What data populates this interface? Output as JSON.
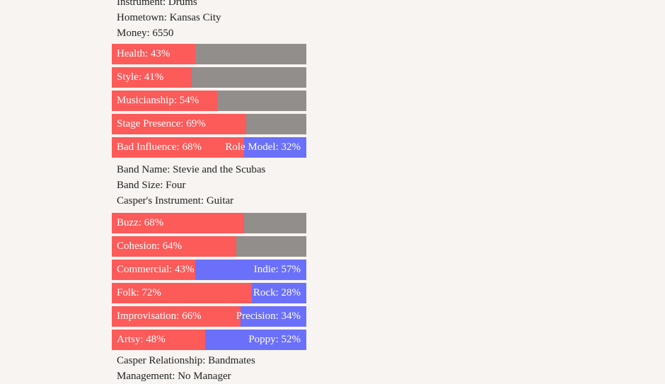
{
  "colors": {
    "background": "#f7f4f1",
    "left_fill": "#fd5a5a",
    "empty": "#918e8b",
    "right_fill": "#6b70fb"
  },
  "character": {
    "instrument": "Instrument: Drums",
    "hometown": "Hometown: Kansas City",
    "money": "Money: 6550"
  },
  "character_stats": [
    {
      "label": "Health: 43%",
      "value": 43
    },
    {
      "label": "Style: 41%",
      "value": 41
    },
    {
      "label": "Musicianship: 54%",
      "value": 54
    },
    {
      "label": "Stage Presence: 69%",
      "value": 69
    },
    {
      "label": "Bad Influence: 68%",
      "value": 68,
      "right_label": "Role Model: 32%"
    }
  ],
  "band": {
    "name": "Band Name: Stevie and the Scubas",
    "size": "Band Size: Four",
    "casper_instrument": "Casper's Instrument: Guitar"
  },
  "band_stats": [
    {
      "label": "Buzz: 68%",
      "value": 68
    },
    {
      "label": "Cohesion: 64%",
      "value": 64
    },
    {
      "label": "Commercial: 43%",
      "value": 43,
      "right_label": "Indie: 57%"
    },
    {
      "label": "Folk: 72%",
      "value": 72,
      "right_label": "Rock: 28%"
    },
    {
      "label": "Improvisation: 66%",
      "value": 66,
      "right_label": "Precision: 34%"
    },
    {
      "label": "Artsy: 48%",
      "value": 48,
      "right_label": "Poppy: 52%"
    }
  ],
  "footer": {
    "relationship": "Casper Relationship: Bandmates",
    "management": "Management: No Manager"
  }
}
